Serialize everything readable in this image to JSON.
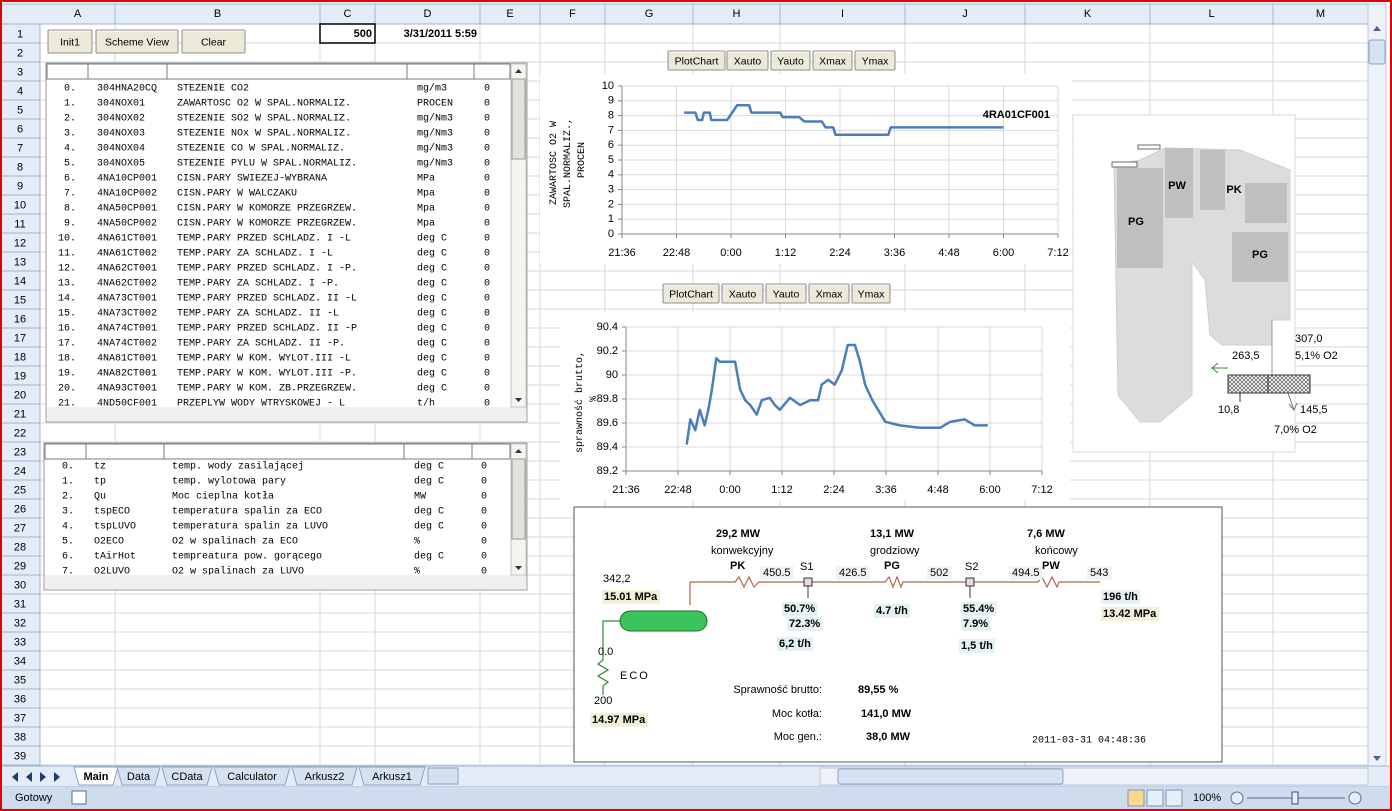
{
  "columns": [
    "A",
    "B",
    "C",
    "D",
    "E",
    "F",
    "G",
    "H",
    "I",
    "J",
    "K",
    "L",
    "M"
  ],
  "rows": [
    1,
    2,
    3,
    4,
    5,
    6,
    7,
    8,
    9,
    10,
    11,
    12,
    13,
    14,
    15,
    16,
    17,
    18,
    19,
    20,
    21,
    22,
    23,
    24,
    25,
    26,
    27,
    28,
    29,
    30,
    31,
    32,
    33,
    34,
    35,
    36,
    37,
    38,
    39
  ],
  "toolbar_buttons": [
    "Init1",
    "Scheme View",
    "Clear"
  ],
  "counter": 500,
  "timestamp": "3/31/2011 5:59",
  "table1": {
    "rows": [
      [
        "0.",
        "304HNA20CQ",
        "STEZENIE CO2",
        "mg/m3",
        0
      ],
      [
        "1.",
        "304NOX01",
        "ZAWARTOSC O2 W SPAL.NORMALIZ.",
        "PROCEN",
        0
      ],
      [
        "2.",
        "304NOX02",
        "STEZENIE SO2 W SPAL.NORMALIZ.",
        "mg/Nm3",
        0
      ],
      [
        "3.",
        "304NOX03",
        "STEZENIE NOx W SPAL.NORMALIZ.",
        "mg/Nm3",
        0
      ],
      [
        "4.",
        "304NOX04",
        "STEZENIE CO W SPAL.NORMALIZ.",
        "mg/Nm3",
        0
      ],
      [
        "5.",
        "304NOX05",
        "STEZENIE PYLU W SPAL.NORMALIZ.",
        "mg/Nm3",
        0
      ],
      [
        "6.",
        "4NA10CP001",
        "CISN.PARY SWIEZEJ-WYBRANA",
        "MPa",
        0
      ],
      [
        "7.",
        "4NA10CP002",
        "CISN.PARY W WALCZAKU",
        "Mpa",
        0
      ],
      [
        "8.",
        "4NA50CP001",
        "CISN.PARY W KOMORZE PRZEGRZEW.",
        "Mpa",
        0
      ],
      [
        "9.",
        "4NA50CP002",
        "CISN.PARY W KOMORZE PRZEGRZEW.",
        "Mpa",
        0
      ],
      [
        "10.",
        "4NA61CT001",
        "TEMP.PARY PRZED SCHLADZ. I -L",
        "deg C",
        0
      ],
      [
        "11.",
        "4NA61CT002",
        "TEMP.PARY ZA SCHLADZ. I -L",
        "deg C",
        0
      ],
      [
        "12.",
        "4NA62CT001",
        "TEMP.PARY PRZED SCHLADZ. I -P.",
        "deg C",
        0
      ],
      [
        "13.",
        "4NA62CT002",
        "TEMP.PARY ZA SCHLADZ. I -P.",
        "deg C",
        0
      ],
      [
        "14.",
        "4NA73CT001",
        "TEMP.PARY PRZED SCHLADZ. II -L",
        "deg C",
        0
      ],
      [
        "15.",
        "4NA73CT002",
        "TEMP.PARY ZA SCHLADZ. II -L",
        "deg C",
        0
      ],
      [
        "16.",
        "4NA74CT001",
        "TEMP.PARY PRZED SCHLADZ. II -P",
        "deg C",
        0
      ],
      [
        "17.",
        "4NA74CT002",
        "TEMP.PARY ZA SCHLADZ. II -P.",
        "deg C",
        0
      ],
      [
        "18.",
        "4NA81CT001",
        "TEMP.PARY W KOM. WYLOT.III -L",
        "deg C",
        0
      ],
      [
        "19.",
        "4NA82CT001",
        "TEMP.PARY W KOM. WYLOT.III -P.",
        "deg C",
        0
      ],
      [
        "20.",
        "4NA93CT001",
        "TEMP.PARY W KOM. ZB.PRZEGRZEW.",
        "deg C",
        0
      ],
      [
        "21.",
        "4ND50CF001",
        "PRZEPLYW WODY WTRYSKOWEJ - L",
        "t/h",
        0
      ]
    ]
  },
  "table2": {
    "rows": [
      [
        "0.",
        "tz",
        "temp. wody zasilającej",
        "deg C",
        0
      ],
      [
        "1.",
        "tp",
        "temp. wylotowa pary",
        "deg C",
        0
      ],
      [
        "2.",
        "Qu",
        "Moc cieplna kotła",
        "MW",
        0
      ],
      [
        "3.",
        "tspECO",
        "temperatura spalin za ECO",
        "deg C",
        0
      ],
      [
        "4.",
        "tspLUVO",
        "temperatura spalin za LUVO",
        "deg C",
        0
      ],
      [
        "5.",
        "O2ECO",
        "O2 w spalinach za ECO",
        "%",
        0
      ],
      [
        "6.",
        "tAirHot",
        "tempreatura pow. gorącego",
        "deg C",
        0
      ],
      [
        "7.",
        "O2LUVO",
        "O2 w spalinach za LUVO",
        "%",
        0
      ]
    ]
  },
  "chart_toolbars": [
    [
      "PlotChart",
      "Xauto",
      "Yauto",
      "Xmax",
      "Ymax"
    ],
    [
      "PlotChart",
      "Xauto",
      "Yauto",
      "Xmax",
      "Ymax"
    ]
  ],
  "chart_data": [
    {
      "type": "line",
      "ylabel": "ZAWARTOSC O2 W SPAL.NORMALIZ., PROCEN",
      "annotation": "4RA01CF001",
      "x": [
        "22:58",
        "23:13",
        "23:16",
        "23:22",
        "23:24",
        "23:32",
        "23:34",
        "23:55",
        "0:08",
        "0:24",
        "0:27",
        "1:05",
        "1:08",
        "1:30",
        "1:37",
        "2:00",
        "2:05",
        "2:15",
        "2:18",
        "3:28",
        "3:31",
        "6:00"
      ],
      "series": [
        {
          "color": "#4a7ebb",
          "values": [
            8.2,
            8.2,
            7.7,
            7.7,
            8.2,
            8.2,
            7.7,
            7.7,
            8.7,
            8.7,
            8.2,
            8.2,
            7.9,
            7.9,
            7.6,
            7.6,
            7.2,
            7.2,
            6.7,
            6.7,
            7.2,
            7.2
          ]
        }
      ],
      "xlim": [
        "21:36",
        "7:12"
      ],
      "ylim": [
        0,
        10
      ],
      "xticks": [
        "21:36",
        "22:48",
        "0:00",
        "1:12",
        "2:24",
        "3:36",
        "4:48",
        "6:00",
        "7:12"
      ],
      "yticks": [
        0,
        1,
        2,
        3,
        4,
        5,
        6,
        7,
        8,
        9,
        10
      ],
      "grid": true
    },
    {
      "type": "line",
      "ylabel": "sprawność brutto, %",
      "x": [
        "23:00",
        "23:05",
        "23:12",
        "23:18",
        "23:25",
        "23:30",
        "23:35",
        "23:41",
        "23:46",
        "0:07",
        "0:14",
        "0:21",
        "0:28",
        "0:37",
        "0:44",
        "0:55",
        "1:02",
        "1:09",
        "1:23",
        "1:37",
        "1:51",
        "2:02",
        "2:07",
        "2:16",
        "2:25",
        "2:35",
        "2:43",
        "2:53",
        "3:00",
        "3:07",
        "3:17",
        "3:25",
        "3:35",
        "3:55",
        "4:23",
        "4:51",
        "5:05",
        "5:25",
        "5:39",
        "5:57"
      ],
      "series": [
        {
          "color": "#4a7ebb",
          "values": [
            89.42,
            89.63,
            89.54,
            89.71,
            89.58,
            89.71,
            89.88,
            90.14,
            90.11,
            90.11,
            89.88,
            89.79,
            89.75,
            89.67,
            89.79,
            89.81,
            89.75,
            89.71,
            89.81,
            89.75,
            89.79,
            89.79,
            89.92,
            89.96,
            89.92,
            90.04,
            90.25,
            90.25,
            90.11,
            89.92,
            89.79,
            89.71,
            89.61,
            89.58,
            89.56,
            89.56,
            89.61,
            89.63,
            89.58,
            89.58
          ]
        }
      ],
      "xlim": [
        "21:36",
        "7:12"
      ],
      "ylim": [
        89.2,
        90.4
      ],
      "xticks": [
        "21:36",
        "22:48",
        "0:00",
        "1:12",
        "2:24",
        "3:36",
        "4:48",
        "6:00",
        "7:12"
      ],
      "yticks": [
        89.2,
        89.4,
        89.6,
        89.8,
        90,
        90.2,
        90.4
      ],
      "grid": true
    }
  ],
  "boiler": {
    "zones": [
      "PG",
      "PW",
      "PK",
      "PG"
    ],
    "flue_temp": "307,0",
    "flue_o2": "5,1% O2",
    "air_out": "263,5",
    "air_in": "10,8",
    "gas_out": "145,5",
    "gas_o2": "7,0% O2"
  },
  "scheme": {
    "stages": [
      {
        "power": "29,2 MW",
        "type": "konwekcyjny",
        "code": "PK"
      },
      {
        "power": "13,1 MW",
        "type": "grodziowy",
        "code": "PG"
      },
      {
        "power": "7,6 MW",
        "type": "końcowy",
        "code": "PW"
      }
    ],
    "drum_temp": "342,2",
    "drum_pressure": "15.01 MPa",
    "pipe_temps": [
      "450.5",
      "426.5",
      "502",
      "494.5",
      "543"
    ],
    "sprays": [
      {
        "name": "S1",
        "valve1": "50.7%",
        "valve2": "72.3%",
        "flow": "6,2 t/h"
      },
      {
        "name": "S2",
        "valve1": "55.4%",
        "valve2": "7.9%",
        "flow": "1,5 t/h"
      }
    ],
    "mid_flow": "4.7 t/h",
    "outlet_flow": "196 t/h",
    "outlet_pressure": "13.42 MPa",
    "eco": {
      "label": "ECO",
      "temp_out": "0.0",
      "temp_in": "200",
      "pressure": "14.97 MPa"
    },
    "summary": [
      {
        "label": "Sprawność brutto:",
        "value": "89,55 %"
      },
      {
        "label": "Moc kotła:",
        "value": "141,0 MW"
      },
      {
        "label": "Moc gen.:",
        "value": "38,0 MW"
      }
    ],
    "timestamp": "2011-03-31 04:48:36"
  },
  "sheet_tabs": [
    "Main",
    "Data",
    "CData",
    "Calculator",
    "Arkusz2",
    "Arkusz1"
  ],
  "status": {
    "mode": "Gotowy",
    "zoom": "100%"
  }
}
